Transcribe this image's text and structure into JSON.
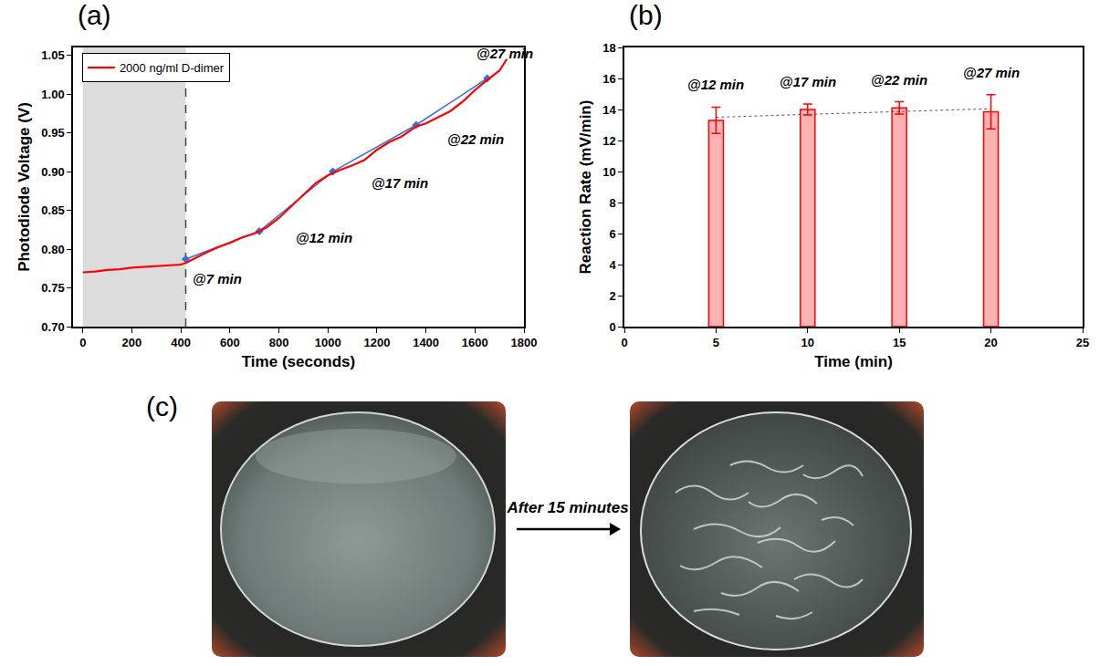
{
  "chart_data": [
    {
      "type": "line",
      "title": "(a)",
      "x_label": "Time (seconds)",
      "y_label": "Photodiode Voltage (V)",
      "xlim": [
        -40,
        1800
      ],
      "xticks": [
        0,
        200,
        400,
        600,
        800,
        1000,
        1200,
        1400,
        1600,
        1800
      ],
      "ylim": [
        0.7,
        1.06
      ],
      "yticks": [
        {
          "value": 0.7,
          "label": "0.70"
        },
        0.75,
        {
          "value": 0.8,
          "label": "0.80"
        },
        0.85,
        {
          "value": 0.9,
          "label": "0.90"
        },
        0.95,
        {
          "value": 1.0,
          "label": "1.00"
        },
        1.05
      ],
      "legend": "top left",
      "shaded_region": [
        0,
        420
      ],
      "series": [
        {
          "name": "2000 ng/ml D-dimer",
          "color": "#ff0000",
          "type": "line",
          "x": [
            0,
            50,
            100,
            150,
            200,
            250,
            300,
            350,
            400,
            420,
            450,
            500,
            550,
            600,
            650,
            700,
            720,
            750,
            800,
            850,
            900,
            950,
            1000,
            1020,
            1050,
            1100,
            1150,
            1200,
            1250,
            1300,
            1350,
            1360,
            1400,
            1450,
            1500,
            1550,
            1600,
            1650,
            1700,
            1730
          ],
          "values": [
            0.77,
            0.771,
            0.773,
            0.774,
            0.776,
            0.777,
            0.778,
            0.779,
            0.78,
            0.782,
            0.787,
            0.795,
            0.802,
            0.808,
            0.815,
            0.82,
            0.823,
            0.828,
            0.84,
            0.855,
            0.87,
            0.885,
            0.895,
            0.898,
            0.902,
            0.908,
            0.915,
            0.928,
            0.938,
            0.945,
            0.955,
            0.958,
            0.962,
            0.97,
            0.978,
            0.99,
            1.005,
            1.018,
            1.03,
            1.045
          ]
        },
        {
          "color": "#3b6fd6",
          "type": "line",
          "marker": "diamond",
          "x": [
            420,
            720,
            1020,
            1360,
            1650
          ],
          "values": [
            0.787,
            0.823,
            0.9,
            0.96,
            1.02
          ]
        }
      ],
      "annotations": [
        {
          "text": "@7 min",
          "x": 440,
          "y": 0.762
        },
        {
          "text": "@12 min",
          "x": 860,
          "y": 0.815
        },
        {
          "text": "@17 min",
          "x": 1170,
          "y": 0.885
        },
        {
          "text": "@22 min",
          "x": 1480,
          "y": 0.942
        },
        {
          "text": "@27 min",
          "x": 1600,
          "y": 1.052
        }
      ]
    },
    {
      "type": "bar",
      "title": "(b)",
      "x_label": "Time (min)",
      "y_label": "Reaction Rate (mV/min)",
      "x": [
        5,
        10,
        15,
        20
      ],
      "values": [
        13.3,
        14.0,
        14.1,
        13.85
      ],
      "errors": [
        0.85,
        0.35,
        0.4,
        1.1
      ],
      "bar_labels": [
        "@12 min",
        "@17 min",
        "@22 min",
        "@27 min"
      ],
      "color": "#ff0000",
      "trend": {
        "x": [
          5,
          20
        ],
        "values": [
          13.5,
          14.05
        ]
      },
      "xlim": [
        0,
        25
      ],
      "xticks": [
        0,
        5,
        10,
        15,
        20,
        25
      ],
      "ylim": [
        0,
        18
      ],
      "yticks": [
        0,
        2,
        4,
        6,
        8,
        10,
        12,
        14,
        16,
        18
      ]
    }
  ],
  "panel_c": {
    "label": "(c)",
    "arrow_text": "After 15 minutes"
  }
}
